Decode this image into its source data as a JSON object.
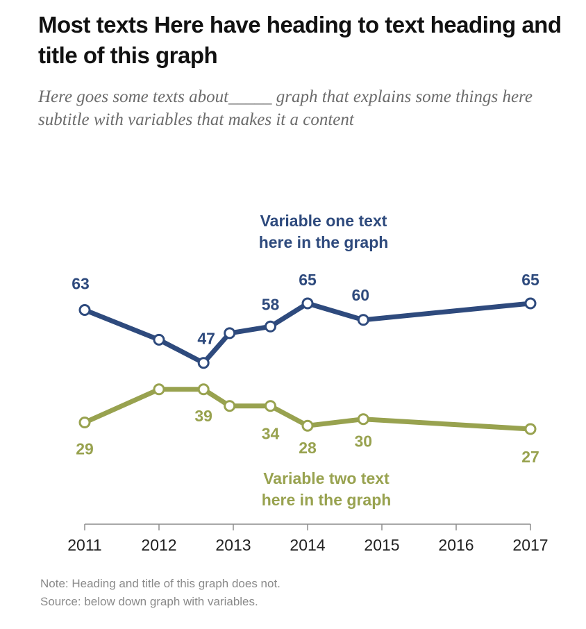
{
  "title": "Most texts Here have heading to text heading and title of this graph",
  "subtitle": "Here goes some texts about_____ graph that explains some things here subtitle with variables that makes it a content",
  "note": "Note: Heading and title of this graph does not.",
  "source": "Source: below down graph with variables.",
  "colors": {
    "series_one": "#2e4a7d",
    "series_two": "#98a24f",
    "axis": "#8c8c8c",
    "tick_text": "#222222"
  },
  "chart_data": {
    "type": "line",
    "title": "Most texts Here have heading to text heading and title of this graph",
    "subtitle": "Here goes some texts about_____ graph that explains some things here subtitle with variables that makes it a content",
    "xlabel": "",
    "ylabel": "",
    "xlim": [
      2011,
      2017
    ],
    "ylim": [
      0,
      80
    ],
    "grid": false,
    "x_ticks": [
      2011,
      2012,
      2013,
      2014,
      2015,
      2016,
      2017
    ],
    "x_tick_labels": [
      "2011",
      "2012",
      "2013",
      "2014",
      "2015",
      "2016",
      "2017"
    ],
    "series": [
      {
        "name": "Variable one text here in the graph",
        "label_lines": [
          "Variable one text",
          "here in the graph"
        ],
        "color": "#2e4a7d",
        "x": [
          2011,
          2012,
          2012.6,
          2012.95,
          2013.5,
          2014,
          2014.75,
          2017
        ],
        "values": [
          63,
          54,
          47,
          56,
          58,
          65,
          60,
          65
        ],
        "labels": [
          "63",
          null,
          "47",
          null,
          "58",
          "65",
          "60",
          "65"
        ]
      },
      {
        "name": "Variable two text here in the graph",
        "label_lines": [
          "Variable two text",
          "here in the graph"
        ],
        "color": "#98a24f",
        "x": [
          2011,
          2012,
          2012.6,
          2012.95,
          2013.5,
          2014,
          2014.75,
          2017
        ],
        "values": [
          29,
          39,
          39,
          34,
          34,
          28,
          30,
          27
        ],
        "labels": [
          "29",
          null,
          "39",
          null,
          "34",
          "28",
          "30",
          "27"
        ]
      }
    ]
  }
}
